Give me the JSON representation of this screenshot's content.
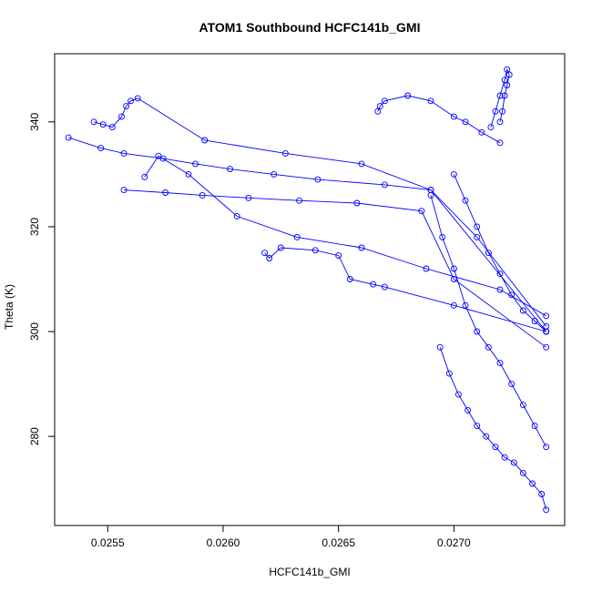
{
  "chart_data": {
    "type": "line",
    "title": "ATOM1 Southbound HCFC141b_GMI",
    "xlabel": "HCFC141b_GMI",
    "ylabel": "Theta (K)",
    "xlim": [
      0.02527,
      0.02748
    ],
    "ylim": [
      263,
      353
    ],
    "x_ticks": [
      "0.0255",
      "0.0260",
      "0.0265",
      "0.0270"
    ],
    "y_ticks": [
      "280",
      "300",
      "320",
      "340"
    ],
    "colors": {
      "series": "#0000ff",
      "axes": "#000000",
      "background": "#ffffff"
    },
    "marker": "open-circle",
    "grid": false,
    "series": [
      {
        "x": [
          0.02533,
          0.02547,
          0.02557,
          0.02574,
          0.02588,
          0.02603,
          0.02622,
          0.02641,
          0.0267,
          0.0269,
          0.0271,
          0.0274
        ],
        "y": [
          337,
          335,
          334,
          333,
          332,
          331,
          330,
          329,
          328,
          327,
          318,
          301
        ]
      },
      {
        "x": [
          0.02544,
          0.02548,
          0.02552,
          0.02556,
          0.02558,
          0.0256,
          0.02563,
          0.02592,
          0.02627,
          0.0266,
          0.0269,
          0.0274
        ],
        "y": [
          340,
          339.5,
          339,
          341,
          343,
          344,
          344.5,
          336.5,
          334,
          332,
          327,
          300
        ]
      },
      {
        "x": [
          0.02557,
          0.02575,
          0.02591,
          0.02611,
          0.02633,
          0.02658,
          0.02686,
          0.027,
          0.0274
        ],
        "y": [
          327,
          326.5,
          326,
          325.5,
          325,
          324.5,
          323,
          310,
          297
        ]
      },
      {
        "x": [
          0.02566,
          0.02572,
          0.02585,
          0.02606,
          0.02632,
          0.0266,
          0.02688,
          0.0272,
          0.0274
        ],
        "y": [
          329.5,
          333.5,
          330,
          322,
          318,
          316,
          312,
          308,
          303
        ]
      },
      {
        "x": [
          0.02618,
          0.0262,
          0.02625,
          0.0264,
          0.0265,
          0.02655,
          0.02665,
          0.0267,
          0.027,
          0.0274
        ],
        "y": [
          315,
          314,
          316,
          315.5,
          314.5,
          310,
          309,
          308.5,
          305,
          300
        ]
      },
      {
        "x": [
          0.02667,
          0.02668,
          0.0267,
          0.0268,
          0.0269,
          0.027,
          0.02705,
          0.02712,
          0.0272
        ],
        "y": [
          342,
          343,
          344,
          345,
          344,
          341,
          340,
          338,
          336
        ]
      },
      {
        "x": [
          0.0269,
          0.02695,
          0.027,
          0.02705,
          0.0271,
          0.02715,
          0.0272,
          0.02725,
          0.0273,
          0.02735,
          0.0274
        ],
        "y": [
          326,
          318,
          312,
          305,
          300,
          297,
          294,
          290,
          286,
          282,
          278
        ]
      },
      {
        "x": [
          0.02694,
          0.02698,
          0.02702,
          0.02706,
          0.0271,
          0.02714,
          0.02718,
          0.02722,
          0.02726,
          0.0273,
          0.02734,
          0.02738,
          0.0274
        ],
        "y": [
          297,
          292,
          288,
          285,
          282,
          280,
          278,
          276,
          275,
          273,
          271,
          269,
          266
        ]
      },
      {
        "x": [
          0.0272,
          0.02721,
          0.02722,
          0.02723,
          0.02724,
          0.02723,
          0.02722,
          0.0272,
          0.02718,
          0.02716
        ],
        "y": [
          340,
          342,
          345,
          347,
          349,
          350,
          348,
          345,
          342,
          339
        ]
      },
      {
        "x": [
          0.027,
          0.02705,
          0.0271,
          0.02715,
          0.0272,
          0.02725,
          0.0273,
          0.02735,
          0.0274
        ],
        "y": [
          330,
          325,
          320,
          315,
          311,
          307,
          304,
          302,
          300
        ]
      }
    ]
  }
}
